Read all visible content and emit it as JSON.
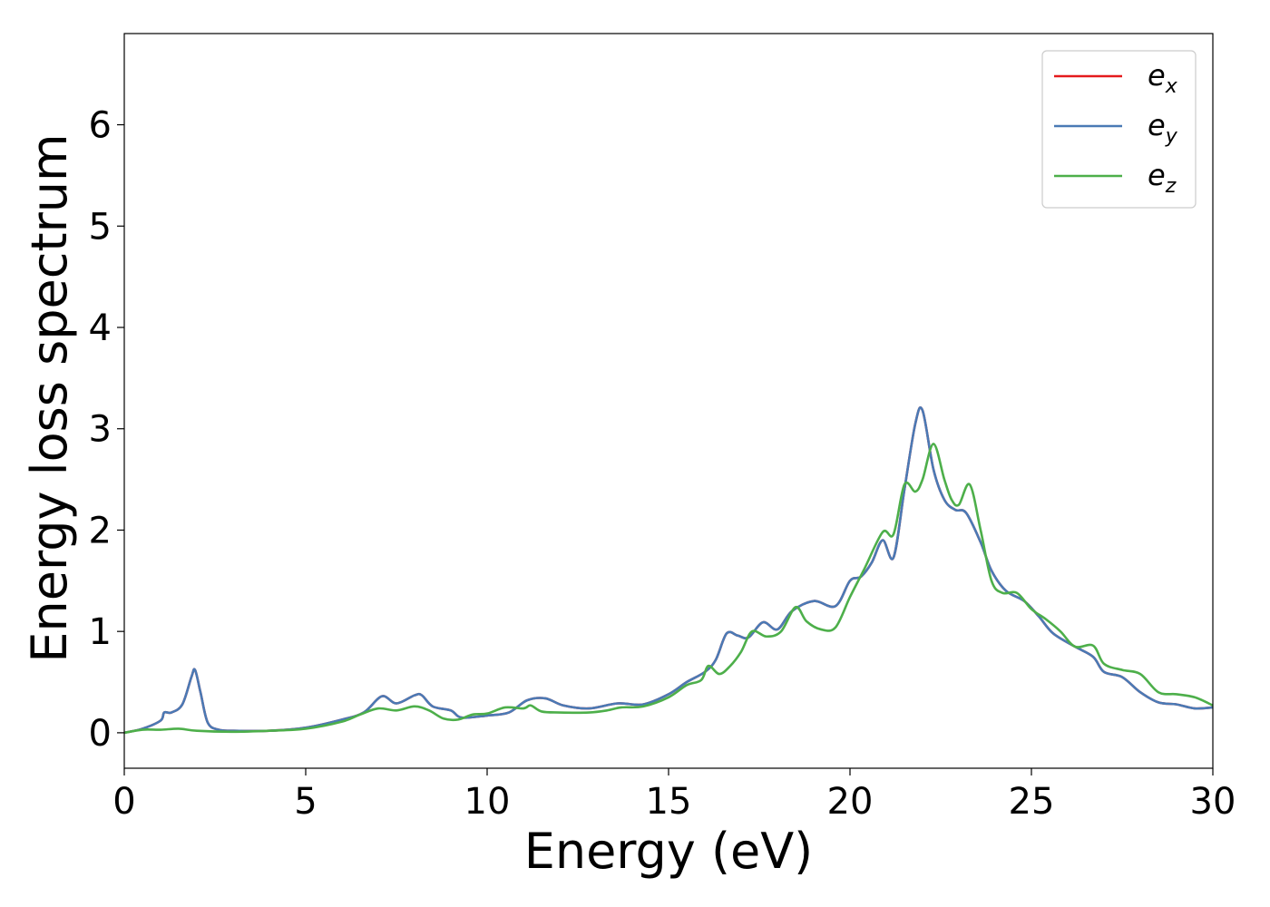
{
  "chart_data": {
    "type": "line",
    "title": "",
    "xlabel": "Energy (eV)",
    "ylabel": "Energy loss spectrum",
    "xlim": [
      0,
      30
    ],
    "ylim": [
      -0.35,
      6.9
    ],
    "xticks": [
      0,
      5,
      10,
      15,
      20,
      25,
      30
    ],
    "yticks": [
      0,
      1,
      2,
      3,
      4,
      5,
      6
    ],
    "grid": false,
    "legend_position": "top-right",
    "series": [
      {
        "name": "e_x",
        "label_base": "e",
        "label_sub": "x",
        "color": "#e41a1c",
        "points": [
          [
            0,
            0
          ],
          [
            0.5,
            0.04
          ],
          [
            1.0,
            0.12
          ],
          [
            1.1,
            0.2
          ],
          [
            1.3,
            0.2
          ],
          [
            1.6,
            0.28
          ],
          [
            1.85,
            0.55
          ],
          [
            1.95,
            0.62
          ],
          [
            2.1,
            0.4
          ],
          [
            2.3,
            0.1
          ],
          [
            2.6,
            0.03
          ],
          [
            3,
            0.02
          ],
          [
            4,
            0.02
          ],
          [
            5,
            0.05
          ],
          [
            6,
            0.13
          ],
          [
            6.6,
            0.2
          ],
          [
            7.1,
            0.36
          ],
          [
            7.5,
            0.29
          ],
          [
            8.0,
            0.37
          ],
          [
            8.2,
            0.37
          ],
          [
            8.5,
            0.26
          ],
          [
            9.0,
            0.22
          ],
          [
            9.3,
            0.15
          ],
          [
            10,
            0.17
          ],
          [
            10.6,
            0.2
          ],
          [
            11.1,
            0.32
          ],
          [
            11.6,
            0.34
          ],
          [
            12.1,
            0.27
          ],
          [
            12.8,
            0.24
          ],
          [
            13.6,
            0.29
          ],
          [
            14.3,
            0.28
          ],
          [
            15,
            0.38
          ],
          [
            15.5,
            0.5
          ],
          [
            16.0,
            0.6
          ],
          [
            16.3,
            0.72
          ],
          [
            16.6,
            0.98
          ],
          [
            16.9,
            0.96
          ],
          [
            17.2,
            0.94
          ],
          [
            17.6,
            1.09
          ],
          [
            18.0,
            1.02
          ],
          [
            18.4,
            1.2
          ],
          [
            19.0,
            1.3
          ],
          [
            19.6,
            1.25
          ],
          [
            20.0,
            1.5
          ],
          [
            20.3,
            1.54
          ],
          [
            20.6,
            1.68
          ],
          [
            20.9,
            1.9
          ],
          [
            21.2,
            1.73
          ],
          [
            21.5,
            2.4
          ],
          [
            21.8,
            3.05
          ],
          [
            22.0,
            3.18
          ],
          [
            22.3,
            2.6
          ],
          [
            22.6,
            2.3
          ],
          [
            22.9,
            2.2
          ],
          [
            23.2,
            2.17
          ],
          [
            23.6,
            1.88
          ],
          [
            23.9,
            1.6
          ],
          [
            24.3,
            1.4
          ],
          [
            24.8,
            1.3
          ],
          [
            25.2,
            1.15
          ],
          [
            25.6,
            0.98
          ],
          [
            26.2,
            0.85
          ],
          [
            26.7,
            0.75
          ],
          [
            27.0,
            0.6
          ],
          [
            27.5,
            0.55
          ],
          [
            28.0,
            0.4
          ],
          [
            28.5,
            0.3
          ],
          [
            29.0,
            0.28
          ],
          [
            29.5,
            0.24
          ],
          [
            30,
            0.25
          ]
        ]
      },
      {
        "name": "e_y",
        "label_base": "e",
        "label_sub": "y",
        "color": "#4a7ab5",
        "points": [
          [
            0,
            0
          ],
          [
            0.5,
            0.04
          ],
          [
            1.0,
            0.12
          ],
          [
            1.1,
            0.2
          ],
          [
            1.3,
            0.2
          ],
          [
            1.6,
            0.28
          ],
          [
            1.85,
            0.55
          ],
          [
            1.95,
            0.62
          ],
          [
            2.1,
            0.4
          ],
          [
            2.3,
            0.1
          ],
          [
            2.6,
            0.03
          ],
          [
            3,
            0.02
          ],
          [
            4,
            0.02
          ],
          [
            5,
            0.05
          ],
          [
            6,
            0.13
          ],
          [
            6.6,
            0.2
          ],
          [
            7.1,
            0.36
          ],
          [
            7.5,
            0.29
          ],
          [
            8.0,
            0.37
          ],
          [
            8.2,
            0.37
          ],
          [
            8.5,
            0.26
          ],
          [
            9.0,
            0.22
          ],
          [
            9.3,
            0.15
          ],
          [
            10,
            0.17
          ],
          [
            10.6,
            0.2
          ],
          [
            11.1,
            0.32
          ],
          [
            11.6,
            0.34
          ],
          [
            12.1,
            0.27
          ],
          [
            12.8,
            0.24
          ],
          [
            13.6,
            0.29
          ],
          [
            14.3,
            0.28
          ],
          [
            15,
            0.38
          ],
          [
            15.5,
            0.5
          ],
          [
            16.0,
            0.6
          ],
          [
            16.3,
            0.72
          ],
          [
            16.6,
            0.98
          ],
          [
            16.9,
            0.96
          ],
          [
            17.2,
            0.94
          ],
          [
            17.6,
            1.09
          ],
          [
            18.0,
            1.02
          ],
          [
            18.4,
            1.2
          ],
          [
            19.0,
            1.3
          ],
          [
            19.6,
            1.25
          ],
          [
            20.0,
            1.5
          ],
          [
            20.3,
            1.54
          ],
          [
            20.6,
            1.68
          ],
          [
            20.9,
            1.9
          ],
          [
            21.2,
            1.73
          ],
          [
            21.5,
            2.4
          ],
          [
            21.8,
            3.05
          ],
          [
            22.0,
            3.18
          ],
          [
            22.3,
            2.6
          ],
          [
            22.6,
            2.3
          ],
          [
            22.9,
            2.2
          ],
          [
            23.2,
            2.17
          ],
          [
            23.6,
            1.88
          ],
          [
            23.9,
            1.6
          ],
          [
            24.3,
            1.4
          ],
          [
            24.8,
            1.3
          ],
          [
            25.2,
            1.15
          ],
          [
            25.6,
            0.98
          ],
          [
            26.2,
            0.85
          ],
          [
            26.7,
            0.75
          ],
          [
            27.0,
            0.6
          ],
          [
            27.5,
            0.55
          ],
          [
            28.0,
            0.4
          ],
          [
            28.5,
            0.3
          ],
          [
            29.0,
            0.28
          ],
          [
            29.5,
            0.24
          ],
          [
            30,
            0.25
          ]
        ]
      },
      {
        "name": "e_z",
        "label_base": "e",
        "label_sub": "z",
        "color": "#4daf4a",
        "points": [
          [
            0,
            0
          ],
          [
            0.5,
            0.03
          ],
          [
            1.0,
            0.03
          ],
          [
            1.5,
            0.04
          ],
          [
            2.0,
            0.02
          ],
          [
            3,
            0.01
          ],
          [
            4,
            0.02
          ],
          [
            5,
            0.04
          ],
          [
            6,
            0.11
          ],
          [
            6.5,
            0.18
          ],
          [
            7.0,
            0.24
          ],
          [
            7.5,
            0.22
          ],
          [
            8.0,
            0.26
          ],
          [
            8.4,
            0.22
          ],
          [
            8.8,
            0.14
          ],
          [
            9.2,
            0.13
          ],
          [
            9.6,
            0.18
          ],
          [
            10.0,
            0.19
          ],
          [
            10.5,
            0.25
          ],
          [
            11.0,
            0.24
          ],
          [
            11.2,
            0.27
          ],
          [
            11.5,
            0.21
          ],
          [
            12.0,
            0.2
          ],
          [
            12.8,
            0.2
          ],
          [
            13.3,
            0.22
          ],
          [
            13.7,
            0.25
          ],
          [
            14.3,
            0.26
          ],
          [
            15.0,
            0.35
          ],
          [
            15.5,
            0.47
          ],
          [
            15.9,
            0.52
          ],
          [
            16.1,
            0.66
          ],
          [
            16.4,
            0.58
          ],
          [
            16.7,
            0.66
          ],
          [
            17.0,
            0.8
          ],
          [
            17.3,
            1.0
          ],
          [
            17.7,
            0.95
          ],
          [
            18.1,
            1.0
          ],
          [
            18.5,
            1.24
          ],
          [
            18.8,
            1.1
          ],
          [
            19.2,
            1.02
          ],
          [
            19.6,
            1.04
          ],
          [
            20.0,
            1.34
          ],
          [
            20.4,
            1.62
          ],
          [
            20.9,
            1.98
          ],
          [
            21.2,
            1.96
          ],
          [
            21.5,
            2.45
          ],
          [
            21.8,
            2.38
          ],
          [
            22.0,
            2.5
          ],
          [
            22.3,
            2.85
          ],
          [
            22.6,
            2.5
          ],
          [
            22.8,
            2.3
          ],
          [
            23.0,
            2.25
          ],
          [
            23.3,
            2.45
          ],
          [
            23.6,
            2.0
          ],
          [
            23.9,
            1.5
          ],
          [
            24.2,
            1.38
          ],
          [
            24.6,
            1.38
          ],
          [
            25.0,
            1.22
          ],
          [
            25.4,
            1.12
          ],
          [
            25.8,
            1.0
          ],
          [
            26.2,
            0.85
          ],
          [
            26.7,
            0.86
          ],
          [
            27.0,
            0.68
          ],
          [
            27.5,
            0.62
          ],
          [
            28.0,
            0.58
          ],
          [
            28.5,
            0.4
          ],
          [
            29.0,
            0.38
          ],
          [
            29.5,
            0.35
          ],
          [
            30.0,
            0.27
          ]
        ]
      }
    ]
  }
}
